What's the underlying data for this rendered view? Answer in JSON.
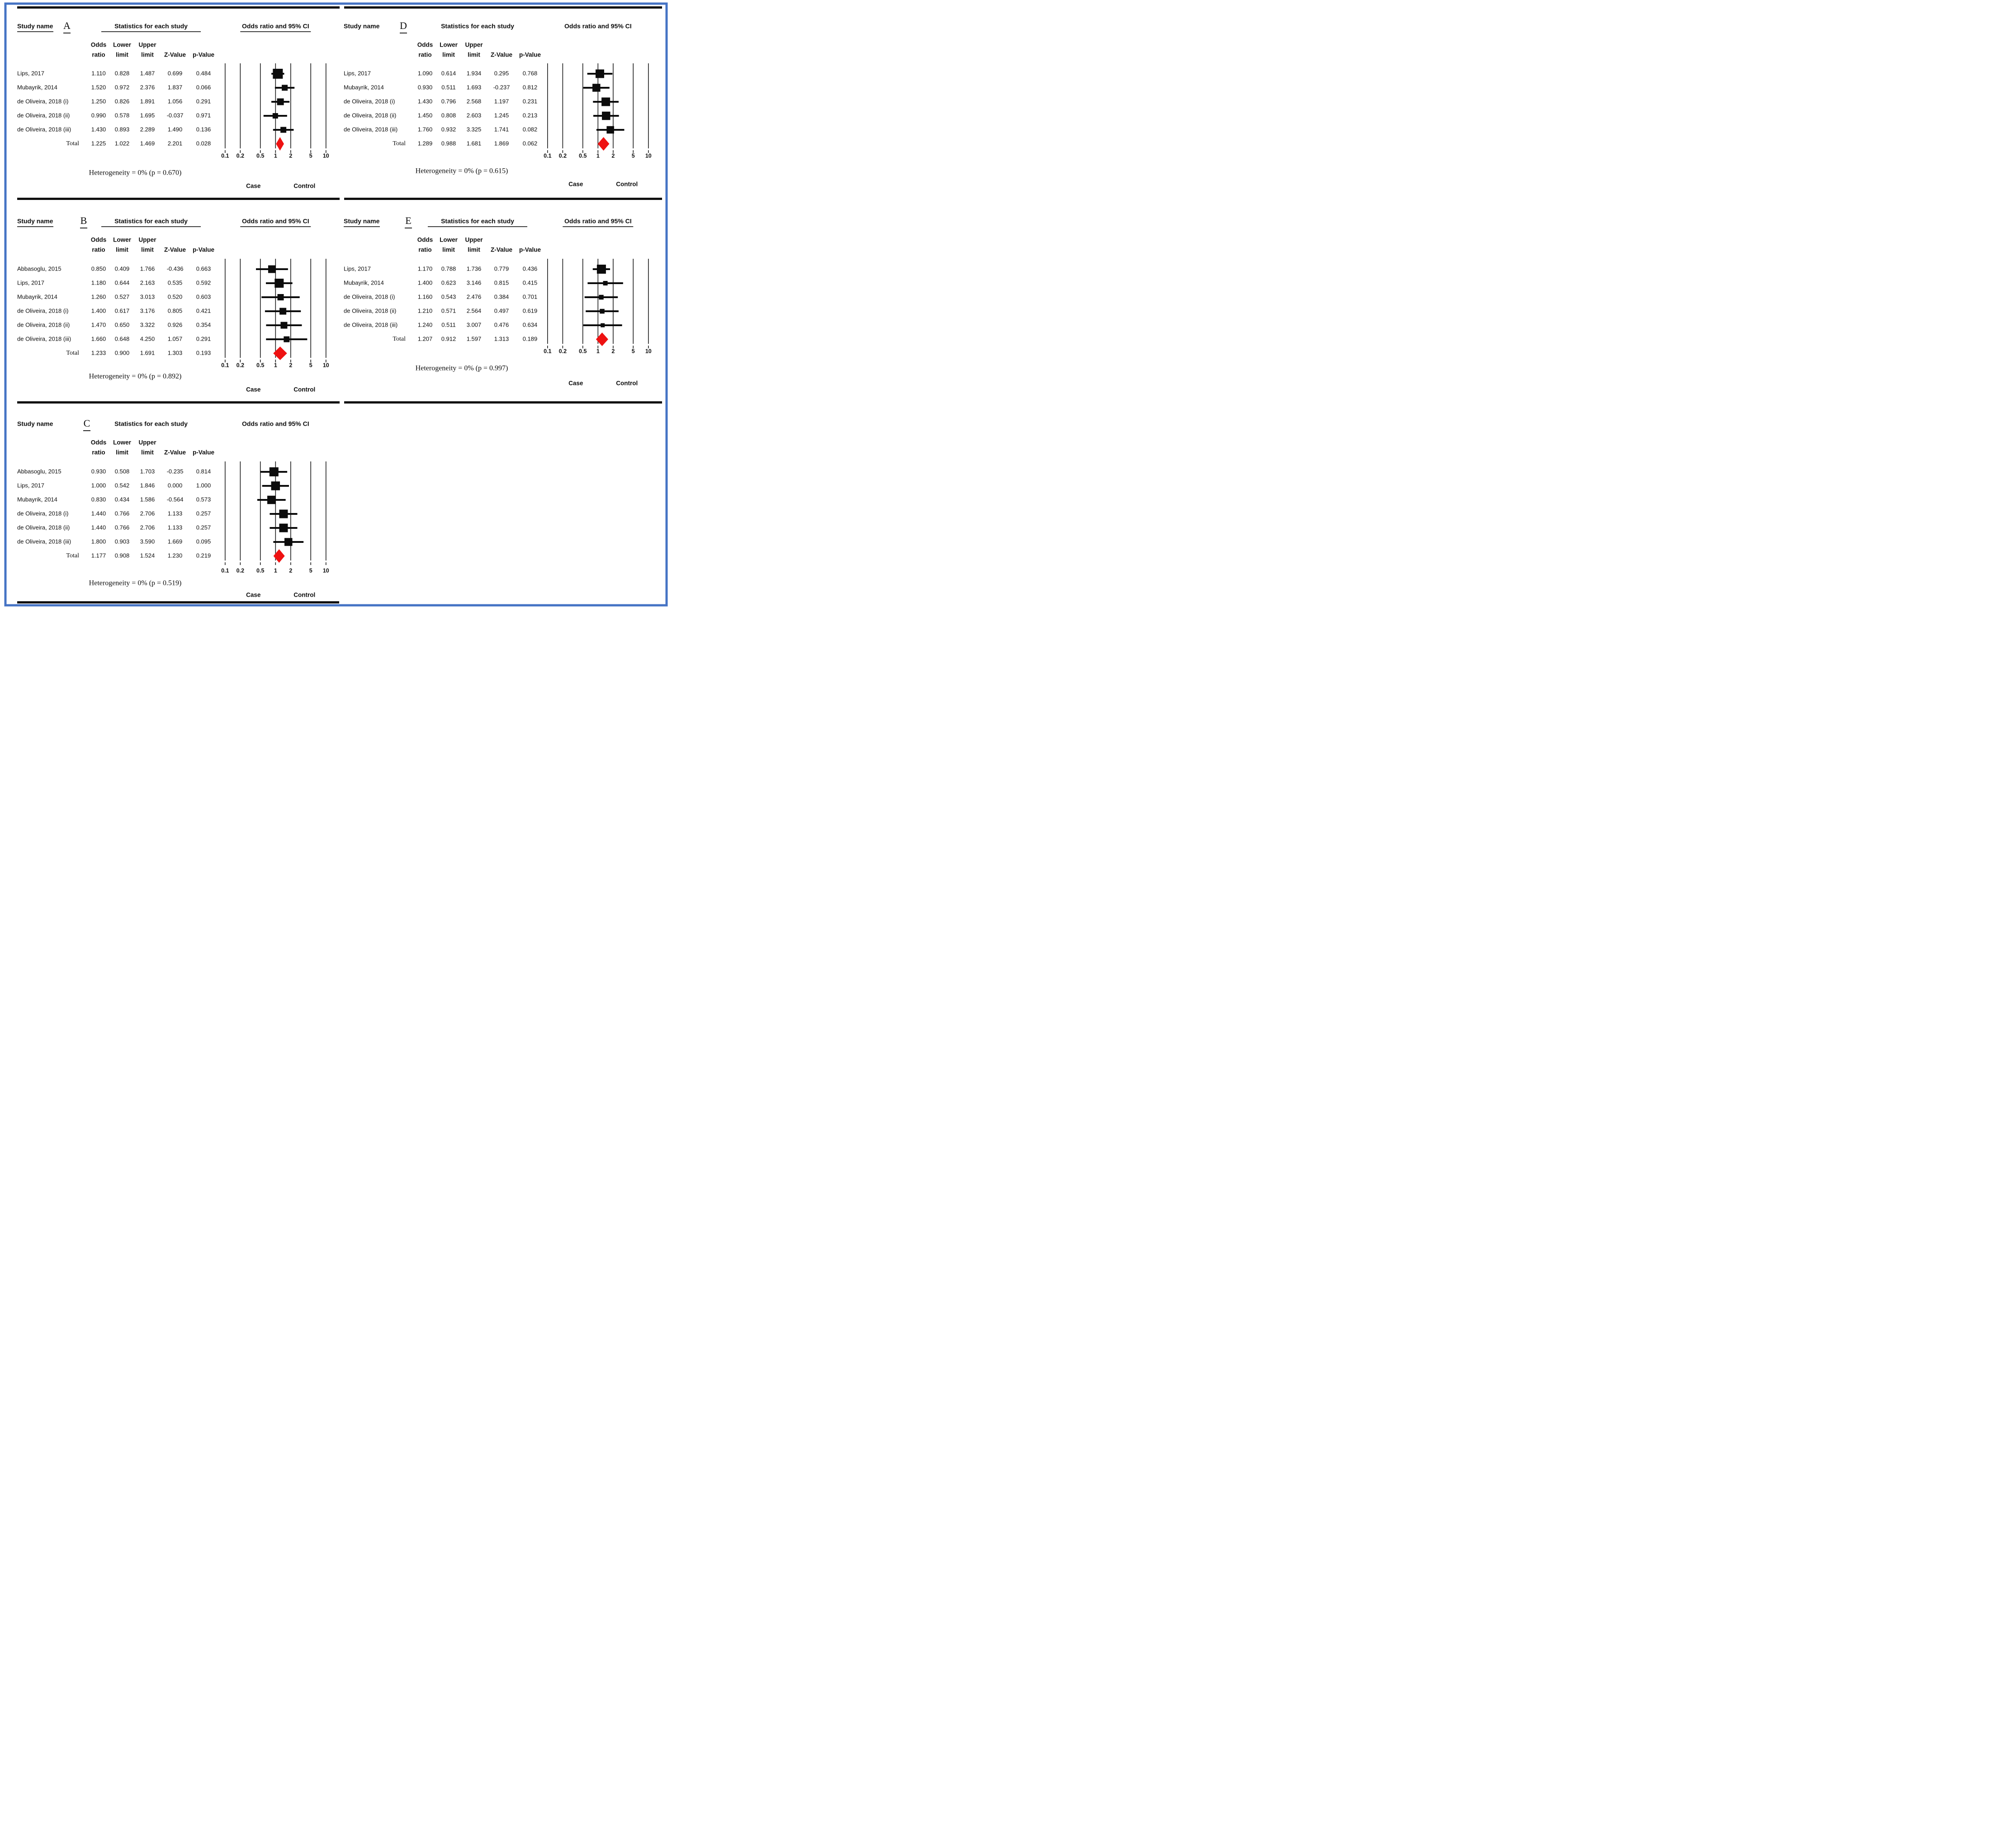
{
  "figure": {
    "title": "Forest plots of odds ratios (panels A to E)",
    "colors": {
      "border": "#4573c4",
      "marker": "#0c0c0c",
      "diamond": "#ee1212",
      "line": "#111111"
    },
    "labels": {
      "study_name_header": "Study name",
      "statistics_header": "Statistics for each study",
      "plot_header": "Odds ratio and 95% CI",
      "case_label": "Case",
      "control_label": "Control",
      "total_label": "Total"
    },
    "column_subheaders": {
      "line1": [
        "Odds",
        "Lower",
        "Upper"
      ],
      "line2": [
        "ratio",
        "limit",
        "limit",
        "Z-Value",
        "p-Value"
      ]
    }
  },
  "chart_data": {
    "type": "forest",
    "x_axis": {
      "scale": "log",
      "ticks": [
        0.1,
        0.2,
        0.5,
        1,
        2,
        5,
        10
      ],
      "tick_labels": [
        "0.1",
        "0.2",
        "0.5",
        "1",
        "2",
        "5",
        "10"
      ],
      "left_side_label": "Case",
      "right_side_label": "Control"
    },
    "panels": [
      {
        "label": "A",
        "header_underlined": true,
        "heterogeneity": "Heterogeneity = 0% (p = 0.670)",
        "studies": [
          {
            "name": "Lips, 2017",
            "odds_ratio": "1.110",
            "lower_limit": "0.828",
            "upper_limit": "1.487",
            "z_value": "0.699",
            "p_value": "0.484",
            "marker_size": 22
          },
          {
            "name": "Mubayrik, 2014",
            "odds_ratio": "1.520",
            "lower_limit": "0.972",
            "upper_limit": "2.376",
            "z_value": "1.837",
            "p_value": "0.066",
            "marker_size": 13
          },
          {
            "name": "de Oliveira, 2018 (i)",
            "odds_ratio": "1.250",
            "lower_limit": "0.826",
            "upper_limit": "1.891",
            "z_value": "1.056",
            "p_value": "0.291",
            "marker_size": 15
          },
          {
            "name": "de Oliveira, 2018 (ii)",
            "odds_ratio": "0.990",
            "lower_limit": "0.578",
            "upper_limit": "1.695",
            "z_value": "-0.037",
            "p_value": "0.971",
            "marker_size": 12
          },
          {
            "name": "de Oliveira, 2018 (iii)",
            "odds_ratio": "1.430",
            "lower_limit": "0.893",
            "upper_limit": "2.289",
            "z_value": "1.490",
            "p_value": "0.136",
            "marker_size": 13
          }
        ],
        "total": {
          "name": "Total",
          "odds_ratio": "1.225",
          "lower_limit": "1.022",
          "upper_limit": "1.469",
          "z_value": "2.201",
          "p_value": "0.028"
        }
      },
      {
        "label": "B",
        "header_underlined": true,
        "heterogeneity": "Heterogeneity = 0% (p = 0.892)",
        "studies": [
          {
            "name": "Abbasoglu, 2015",
            "odds_ratio": "0.850",
            "lower_limit": "0.409",
            "upper_limit": "1.766",
            "z_value": "-0.436",
            "p_value": "0.663",
            "marker_size": 17
          },
          {
            "name": "Lips, 2017",
            "odds_ratio": "1.180",
            "lower_limit": "0.644",
            "upper_limit": "2.163",
            "z_value": "0.535",
            "p_value": "0.592",
            "marker_size": 20
          },
          {
            "name": "Mubayrik, 2014",
            "odds_ratio": "1.260",
            "lower_limit": "0.527",
            "upper_limit": "3.013",
            "z_value": "0.520",
            "p_value": "0.603",
            "marker_size": 14
          },
          {
            "name": "de Oliveira, 2018 (i)",
            "odds_ratio": "1.400",
            "lower_limit": "0.617",
            "upper_limit": "3.176",
            "z_value": "0.805",
            "p_value": "0.421",
            "marker_size": 15
          },
          {
            "name": "de Oliveira, 2018 (ii)",
            "odds_ratio": "1.470",
            "lower_limit": "0.650",
            "upper_limit": "3.322",
            "z_value": "0.926",
            "p_value": "0.354",
            "marker_size": 15
          },
          {
            "name": "de Oliveira, 2018 (iii)",
            "odds_ratio": "1.660",
            "lower_limit": "0.648",
            "upper_limit": "4.250",
            "z_value": "1.057",
            "p_value": "0.291",
            "marker_size": 13
          }
        ],
        "total": {
          "name": "Total",
          "odds_ratio": "1.233",
          "lower_limit": "0.900",
          "upper_limit": "1.691",
          "z_value": "1.303",
          "p_value": "0.193"
        }
      },
      {
        "label": "C",
        "header_underlined": false,
        "heterogeneity": "Heterogeneity = 0% (p = 0.519)",
        "studies": [
          {
            "name": "Abbasoglu, 2015",
            "odds_ratio": "0.930",
            "lower_limit": "0.508",
            "upper_limit": "1.703",
            "z_value": "-0.235",
            "p_value": "0.814",
            "marker_size": 20
          },
          {
            "name": "Lips, 2017",
            "odds_ratio": "1.000",
            "lower_limit": "0.542",
            "upper_limit": "1.846",
            "z_value": "0.000",
            "p_value": "1.000",
            "marker_size": 19.5
          },
          {
            "name": "Mubayrik, 2014",
            "odds_ratio": "0.830",
            "lower_limit": "0.434",
            "upper_limit": "1.586",
            "z_value": "-0.564",
            "p_value": "0.573",
            "marker_size": 18.5
          },
          {
            "name": "de Oliveira, 2018 (i)",
            "odds_ratio": "1.440",
            "lower_limit": "0.766",
            "upper_limit": "2.706",
            "z_value": "1.133",
            "p_value": "0.257",
            "marker_size": 19
          },
          {
            "name": "de Oliveira, 2018 (ii)",
            "odds_ratio": "1.440",
            "lower_limit": "0.766",
            "upper_limit": "2.706",
            "z_value": "1.133",
            "p_value": "0.257",
            "marker_size": 19
          },
          {
            "name": "de Oliveira, 2018 (iii)",
            "odds_ratio": "1.800",
            "lower_limit": "0.903",
            "upper_limit": "3.590",
            "z_value": "1.669",
            "p_value": "0.095",
            "marker_size": 17.5
          }
        ],
        "total": {
          "name": "Total",
          "odds_ratio": "1.177",
          "lower_limit": "0.908",
          "upper_limit": "1.524",
          "z_value": "1.230",
          "p_value": "0.219"
        }
      },
      {
        "label": "D",
        "header_underlined": false,
        "heterogeneity": "Heterogeneity = 0% (p = 0.615)",
        "studies": [
          {
            "name": "Lips, 2017",
            "odds_ratio": "1.090",
            "lower_limit": "0.614",
            "upper_limit": "1.934",
            "z_value": "0.295",
            "p_value": "0.768",
            "marker_size": 19
          },
          {
            "name": "Mubayrik, 2014",
            "odds_ratio": "0.930",
            "lower_limit": "0.511",
            "upper_limit": "1.693",
            "z_value": "-0.237",
            "p_value": "0.812",
            "marker_size": 17.5
          },
          {
            "name": "de Oliveira, 2018 (i)",
            "odds_ratio": "1.430",
            "lower_limit": "0.796",
            "upper_limit": "2.568",
            "z_value": "1.197",
            "p_value": "0.231",
            "marker_size": 19
          },
          {
            "name": "de Oliveira, 2018 (ii)",
            "odds_ratio": "1.450",
            "lower_limit": "0.808",
            "upper_limit": "2.603",
            "z_value": "1.245",
            "p_value": "0.213",
            "marker_size": 18.5
          },
          {
            "name": "de Oliveira, 2018 (iii)",
            "odds_ratio": "1.760",
            "lower_limit": "0.932",
            "upper_limit": "3.325",
            "z_value": "1.741",
            "p_value": "0.082",
            "marker_size": 16.5
          }
        ],
        "total": {
          "name": "Total",
          "odds_ratio": "1.289",
          "lower_limit": "0.988",
          "upper_limit": "1.681",
          "z_value": "1.869",
          "p_value": "0.062"
        }
      },
      {
        "label": "E",
        "header_underlined": true,
        "heterogeneity": "Heterogeneity = 0% (p = 0.997)",
        "studies": [
          {
            "name": "Lips, 2017",
            "odds_ratio": "1.170",
            "lower_limit": "0.788",
            "upper_limit": "1.736",
            "z_value": "0.779",
            "p_value": "0.436",
            "marker_size": 20
          },
          {
            "name": "Mubayrik, 2014",
            "odds_ratio": "1.400",
            "lower_limit": "0.623",
            "upper_limit": "3.146",
            "z_value": "0.815",
            "p_value": "0.415",
            "marker_size": 10
          },
          {
            "name": "de Oliveira, 2018 (i)",
            "odds_ratio": "1.160",
            "lower_limit": "0.543",
            "upper_limit": "2.476",
            "z_value": "0.384",
            "p_value": "0.701",
            "marker_size": 10.5
          },
          {
            "name": "de Oliveira, 2018 (ii)",
            "odds_ratio": "1.210",
            "lower_limit": "0.571",
            "upper_limit": "2.564",
            "z_value": "0.497",
            "p_value": "0.619",
            "marker_size": 10.5
          },
          {
            "name": "de Oliveira, 2018 (iii)",
            "odds_ratio": "1.240",
            "lower_limit": "0.511",
            "upper_limit": "3.007",
            "z_value": "0.476",
            "p_value": "0.634",
            "marker_size": 9
          }
        ],
        "total": {
          "name": "Total",
          "odds_ratio": "1.207",
          "lower_limit": "0.912",
          "upper_limit": "1.597",
          "z_value": "1.313",
          "p_value": "0.189"
        }
      }
    ]
  }
}
